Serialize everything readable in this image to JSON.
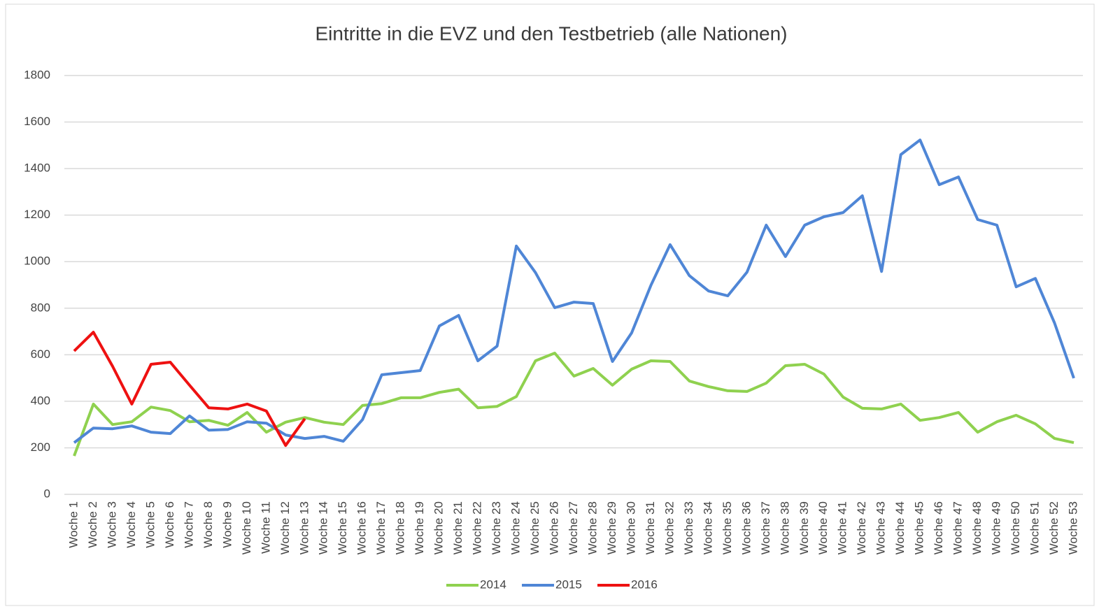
{
  "chart_data": {
    "type": "line",
    "title": "Eintritte in die EVZ und den Testbetrieb (alle Nationen)",
    "categories": [
      "Woche 1",
      "Woche 2",
      "Woche 3",
      "Woche 4",
      "Woche 5",
      "Woche 6",
      "Woche 7",
      "Woche 8",
      "Woche 9",
      "Woche 10",
      "Woche 11",
      "Woche 12",
      "Woche 13",
      "Woche 14",
      "Woche 15",
      "Woche 16",
      "Woche 17",
      "Woche 18",
      "Woche 19",
      "Woche 20",
      "Woche 21",
      "Woche 22",
      "Woche 23",
      "Woche 24",
      "Woche 25",
      "Woche 26",
      "Woche 27",
      "Woche 28",
      "Woche 29",
      "Woche 30",
      "Woche 31",
      "Woche 32",
      "Woche 33",
      "Woche 34",
      "Woche 35",
      "Woche 36",
      "Woche 37",
      "Woche 38",
      "Woche 39",
      "Woche 40",
      "Woche 41",
      "Woche 42",
      "Woche 43",
      "Woche 44",
      "Woche 45",
      "Woche 46",
      "Woche 47",
      "Woche 48",
      "Woche 49",
      "Woche 50",
      "Woche 51",
      "Woche 52",
      "Woche 53"
    ],
    "series": [
      {
        "name": "2014",
        "color": "#8fd14f",
        "values": [
          165,
          388,
          300,
          312,
          375,
          360,
          312,
          318,
          297,
          352,
          267,
          310,
          330,
          310,
          300,
          382,
          390,
          415,
          415,
          438,
          452,
          372,
          378,
          420,
          574,
          607,
          508,
          541,
          469,
          538,
          574,
          571,
          487,
          463,
          445,
          442,
          478,
          553,
          559,
          517,
          418,
          370,
          367,
          388,
          318,
          330,
          352,
          267,
          312,
          340,
          303,
          240,
          222
        ]
      },
      {
        "name": "2015",
        "color": "#4f86d6",
        "values": [
          222,
          285,
          282,
          294,
          267,
          261,
          337,
          276,
          279,
          312,
          306,
          255,
          240,
          249,
          228,
          321,
          514,
          523,
          532,
          724,
          769,
          574,
          637,
          1067,
          953,
          802,
          826,
          820,
          571,
          694,
          898,
          1073,
          940,
          874,
          853,
          955,
          1157,
          1022,
          1157,
          1193,
          1211,
          1283,
          958,
          1460,
          1523,
          1331,
          1364,
          1181,
          1157,
          892,
          928,
          736,
          499
        ]
      },
      {
        "name": "2016",
        "color": "#ee1111",
        "values": [
          616,
          697,
          550,
          388,
          559,
          568,
          469,
          372,
          367,
          388,
          358,
          210,
          325,
          null,
          null,
          null,
          null,
          null,
          null,
          null,
          null,
          null,
          null,
          null,
          null,
          null,
          null,
          null,
          null,
          null,
          null,
          null,
          null,
          null,
          null,
          null,
          null,
          null,
          null,
          null,
          null,
          null,
          null,
          null,
          null,
          null,
          null,
          null,
          null,
          null,
          null,
          null,
          null
        ]
      }
    ],
    "ylim": [
      0,
      1800
    ],
    "yticks": [
      0,
      200,
      400,
      600,
      800,
      1000,
      1200,
      1400,
      1600,
      1800
    ],
    "grid": true,
    "legend": "bottom"
  }
}
